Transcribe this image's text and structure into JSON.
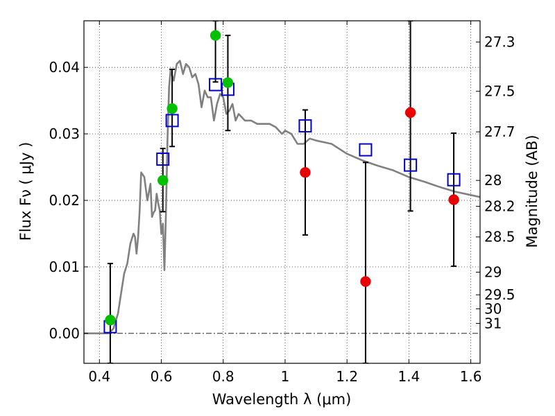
{
  "chart_data": {
    "type": "scatter",
    "title": "",
    "xlabel": "Wavelength  λ (μm)",
    "ylabel": "Flux  Fν  ( μJy )",
    "y2label": "Magnitude (AB)",
    "xlim": [
      0.35,
      1.63
    ],
    "ylim": [
      -0.0045,
      0.047
    ],
    "x_ticks": [
      0.4,
      0.6,
      0.8,
      1.0,
      1.2,
      1.4,
      1.6
    ],
    "x_tick_labels": [
      "0.4",
      "0.6",
      "0.8",
      "1",
      "1.2",
      "1.4",
      "1.6"
    ],
    "y_ticks": [
      0.0,
      0.01,
      0.02,
      0.03,
      0.04
    ],
    "y_tick_labels": [
      "0.00",
      "0.01",
      "0.02",
      "0.03",
      "0.04"
    ],
    "y2_ticks": [
      {
        "label": "27.3",
        "flux": 0.0438
      },
      {
        "label": "27.5",
        "flux": 0.0364
      },
      {
        "label": "27.7",
        "flux": 0.0303
      },
      {
        "label": "28",
        "flux": 0.023
      },
      {
        "label": "28.2",
        "flux": 0.0191
      },
      {
        "label": "28.5",
        "flux": 0.0145
      },
      {
        "label": "29",
        "flux": 0.0092
      },
      {
        "label": "29.5",
        "flux": 0.0058
      },
      {
        "label": "30",
        "flux": 0.0037
      },
      {
        "label": "31",
        "flux": 0.0015
      }
    ],
    "grid": true,
    "series": [
      {
        "type": "line",
        "color": "#808080",
        "x": [
          0.35,
          0.43,
          0.445,
          0.46,
          0.47,
          0.48,
          0.49,
          0.5,
          0.51,
          0.515,
          0.52,
          0.525,
          0.53,
          0.535,
          0.545,
          0.555,
          0.565,
          0.57,
          0.575,
          0.58,
          0.585,
          0.59,
          0.595,
          0.6,
          0.605,
          0.61,
          0.615,
          0.62,
          0.625,
          0.63,
          0.64,
          0.65,
          0.66,
          0.67,
          0.68,
          0.69,
          0.7,
          0.71,
          0.72,
          0.73,
          0.74,
          0.75,
          0.76,
          0.77,
          0.78,
          0.79,
          0.8,
          0.81,
          0.82,
          0.83,
          0.84,
          0.85,
          0.87,
          0.89,
          0.91,
          0.93,
          0.95,
          0.97,
          0.99,
          1.0,
          1.02,
          1.04,
          1.06,
          1.08,
          1.1,
          1.15,
          1.2,
          1.25,
          1.3,
          1.35,
          1.4,
          1.45,
          1.5,
          1.55,
          1.6,
          1.63
        ],
        "y": [
          0.0,
          0.0,
          0.0007,
          0.003,
          0.006,
          0.009,
          0.0105,
          0.0135,
          0.015,
          0.0145,
          0.012,
          0.0145,
          0.0185,
          0.0242,
          0.0235,
          0.02,
          0.0225,
          0.0175,
          0.0182,
          0.0185,
          0.021,
          0.0195,
          0.0185,
          0.015,
          0.0165,
          0.0095,
          0.018,
          0.029,
          0.037,
          0.0395,
          0.038,
          0.0405,
          0.041,
          0.039,
          0.0405,
          0.04,
          0.0385,
          0.039,
          0.0375,
          0.034,
          0.0365,
          0.0355,
          0.0355,
          0.032,
          0.0345,
          0.036,
          0.0355,
          0.033,
          0.0335,
          0.0345,
          0.032,
          0.033,
          0.032,
          0.032,
          0.0315,
          0.0315,
          0.0315,
          0.031,
          0.03,
          0.0305,
          0.03,
          0.0285,
          0.0285,
          0.0293,
          0.029,
          0.0285,
          0.027,
          0.026,
          0.0252,
          0.0245,
          0.0235,
          0.0228,
          0.022,
          0.0213,
          0.0208,
          0.0205
        ]
      },
      {
        "type": "scatter",
        "marker": "circle",
        "color": "#00c000",
        "x": [
          0.435,
          0.605,
          0.635,
          0.775,
          0.815
        ],
        "y": [
          0.002,
          0.023,
          0.0338,
          0.0448,
          0.0377
        ]
      },
      {
        "type": "scatter",
        "marker": "circle",
        "color": "#e80000",
        "x": [
          1.065,
          1.26,
          1.405,
          1.545
        ],
        "y": [
          0.0242,
          0.0078,
          0.0332,
          0.0201
        ]
      },
      {
        "type": "scatter",
        "marker": "square-open",
        "color": "#0000cc",
        "x": [
          0.435,
          0.605,
          0.635,
          0.775,
          0.815,
          1.065,
          1.26,
          1.405,
          1.545
        ],
        "y": [
          0.001,
          0.0262,
          0.032,
          0.0374,
          0.0367,
          0.0312,
          0.0276,
          0.0253,
          0.0231
        ]
      }
    ],
    "error_bars": [
      {
        "x": 0.435,
        "low": -0.0045,
        "high": 0.0105
      },
      {
        "x": 0.605,
        "low": 0.0183,
        "high": 0.0278
      },
      {
        "x": 0.635,
        "low": 0.0281,
        "high": 0.0397
      },
      {
        "x": 0.775,
        "low": 0.0378,
        "high": 0.047
      },
      {
        "x": 0.815,
        "low": 0.0305,
        "high": 0.0448
      },
      {
        "x": 1.065,
        "low": 0.0148,
        "high": 0.0336
      },
      {
        "x": 1.26,
        "low": -0.0045,
        "high": 0.0257
      },
      {
        "x": 1.405,
        "low": 0.0184,
        "high": 0.047
      },
      {
        "x": 1.545,
        "low": 0.0101,
        "high": 0.0301
      }
    ]
  }
}
